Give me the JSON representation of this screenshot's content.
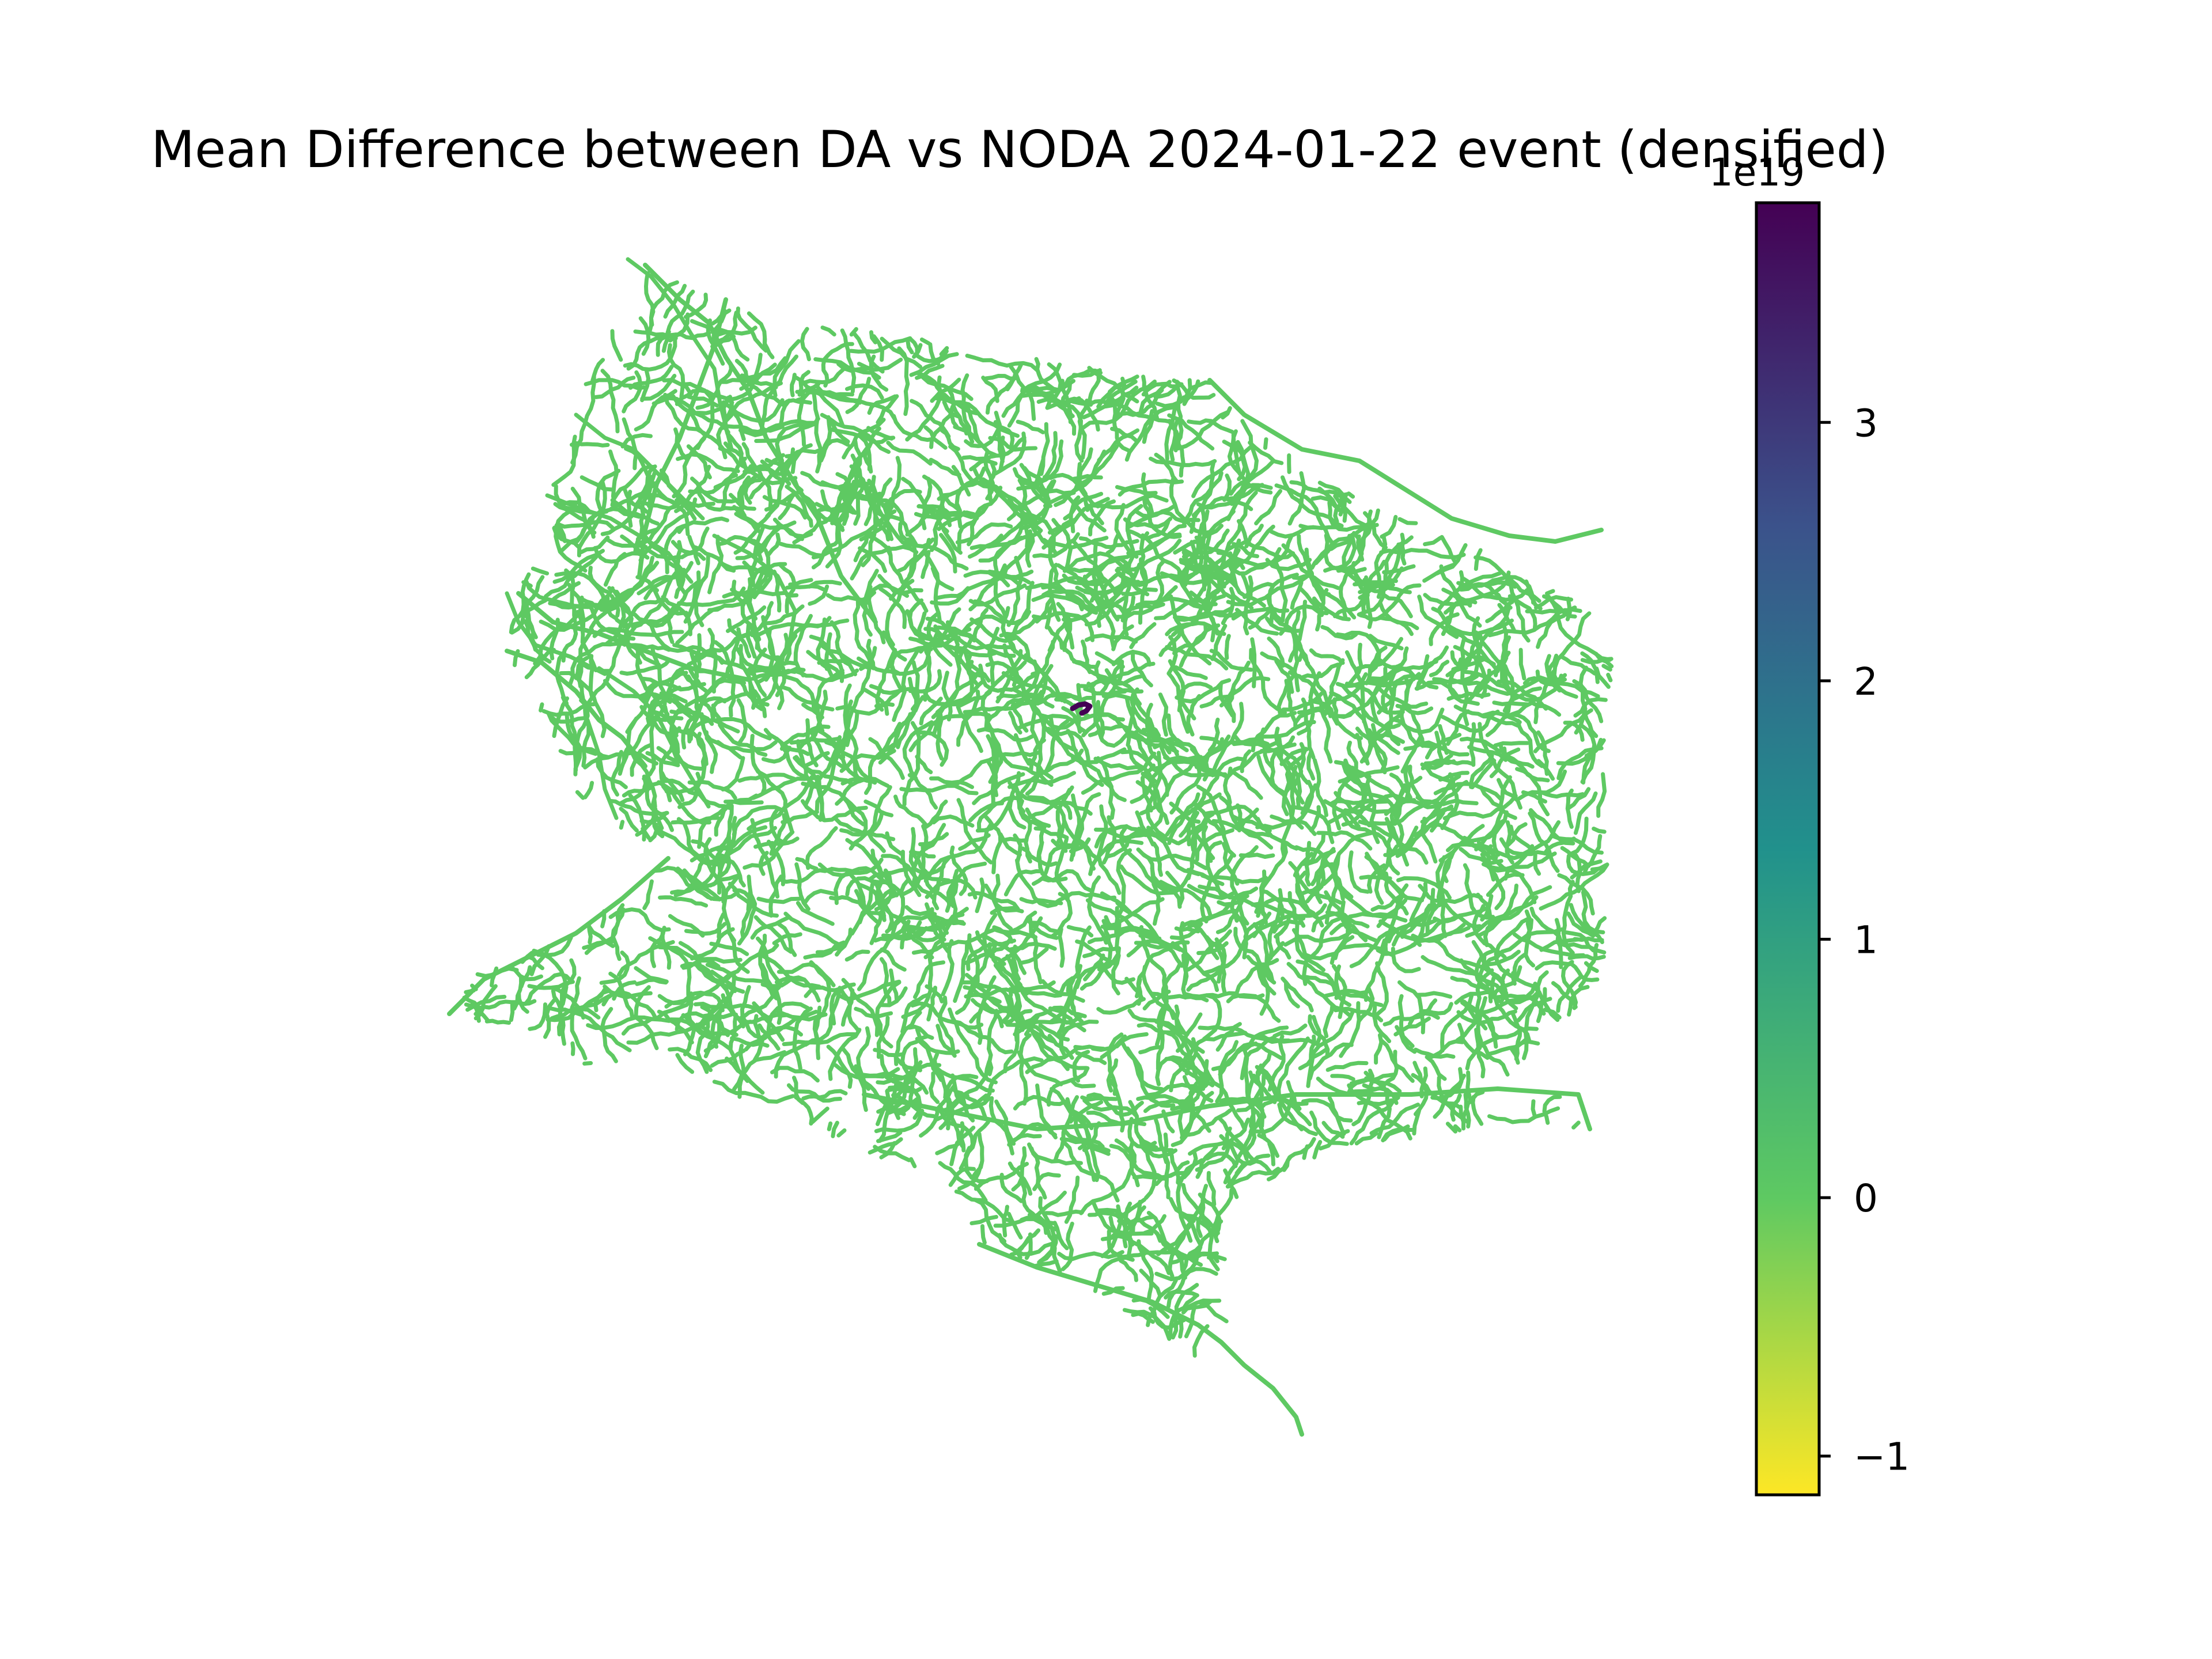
{
  "figure": {
    "title": "Mean Difference between DA vs NODA 2024-01-22 event (densified)",
    "axis_visible": false
  },
  "colorbar": {
    "colormap": "viridis_r",
    "vmin": -1.15,
    "vmax": 3.85,
    "offset_text": "1e19",
    "ticks": [
      {
        "value": -1,
        "label": "−1"
      },
      {
        "value": 0,
        "label": "0"
      },
      {
        "value": 1,
        "label": "1"
      },
      {
        "value": 2,
        "label": "2"
      },
      {
        "value": 3,
        "label": "3"
      }
    ],
    "stops": [
      "#fde725",
      "#5ec962",
      "#21918c",
      "#3b528b",
      "#440154"
    ]
  },
  "map_layers": [
    {
      "name": "river network",
      "value": 0,
      "color": "#5ec962"
    },
    {
      "name": "outlier segment",
      "value": 3.85,
      "color": "#440154"
    }
  ]
}
